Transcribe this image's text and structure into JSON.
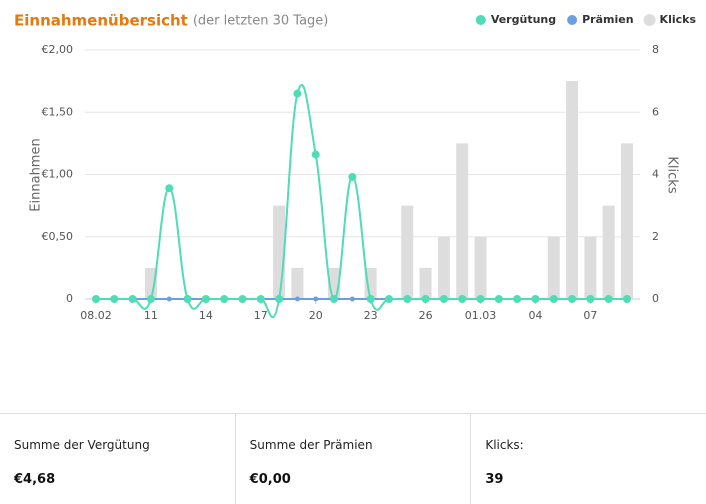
{
  "chart_data": {
    "type": "combo",
    "title": "Einnahmenübersicht",
    "subtitle": "(der letzten 30 Tage)",
    "y_label": "Einnahmen",
    "y2_label": "Klicks",
    "categories": [
      "08.02",
      null,
      null,
      "11",
      null,
      null,
      "14",
      null,
      null,
      "17",
      null,
      null,
      "20",
      null,
      null,
      "23",
      null,
      null,
      "26",
      null,
      null,
      "01.03",
      null,
      null,
      "04",
      null,
      null,
      "07",
      null,
      null
    ],
    "series": [
      {
        "name": "Vergütung",
        "type": "line",
        "color": "#4fdcb6",
        "values": [
          0,
          0,
          0,
          0,
          0.89,
          0,
          0,
          0,
          0,
          0,
          0,
          1.65,
          1.16,
          0,
          0.98,
          0,
          0,
          0,
          0,
          0,
          0,
          0,
          0,
          0,
          0,
          0,
          0,
          0,
          0,
          0
        ]
      },
      {
        "name": "Prämien",
        "type": "line",
        "color": "#6a9fe0",
        "values": [
          0,
          0,
          0,
          0,
          0,
          0,
          0,
          0,
          0,
          0,
          0,
          0,
          0,
          0,
          0,
          0,
          0,
          0,
          0,
          0,
          0,
          0,
          0,
          0,
          0,
          0,
          0,
          0,
          0,
          0
        ]
      },
      {
        "name": "Klicks",
        "type": "bar",
        "axis": "y2",
        "color": "#dddddd",
        "values": [
          0,
          0,
          0,
          1,
          0,
          0,
          0,
          0,
          0,
          0,
          3,
          1,
          0,
          1,
          0,
          1,
          0,
          3,
          1,
          2,
          5,
          2,
          0,
          0,
          0,
          2,
          7,
          2,
          3,
          5
        ]
      }
    ],
    "ylim": [
      0,
      2
    ],
    "yticks": [
      0,
      {
        "value": 0.5,
        "label": "€0,50"
      },
      {
        "value": 1,
        "label": "€1,00"
      },
      {
        "value": 1.5,
        "label": "€1,50"
      },
      {
        "value": 2,
        "label": "€2,00"
      }
    ],
    "y2lim": [
      0,
      8
    ],
    "y2ticks": [
      0,
      2,
      4,
      6,
      8
    ],
    "grid": true,
    "legend": "top-right"
  },
  "summary": [
    {
      "label": "Summe der Vergütung",
      "value": "€4,68"
    },
    {
      "label": "Summe der Prämien",
      "value": "€0,00"
    },
    {
      "label": "Klicks:",
      "value": "39"
    }
  ]
}
